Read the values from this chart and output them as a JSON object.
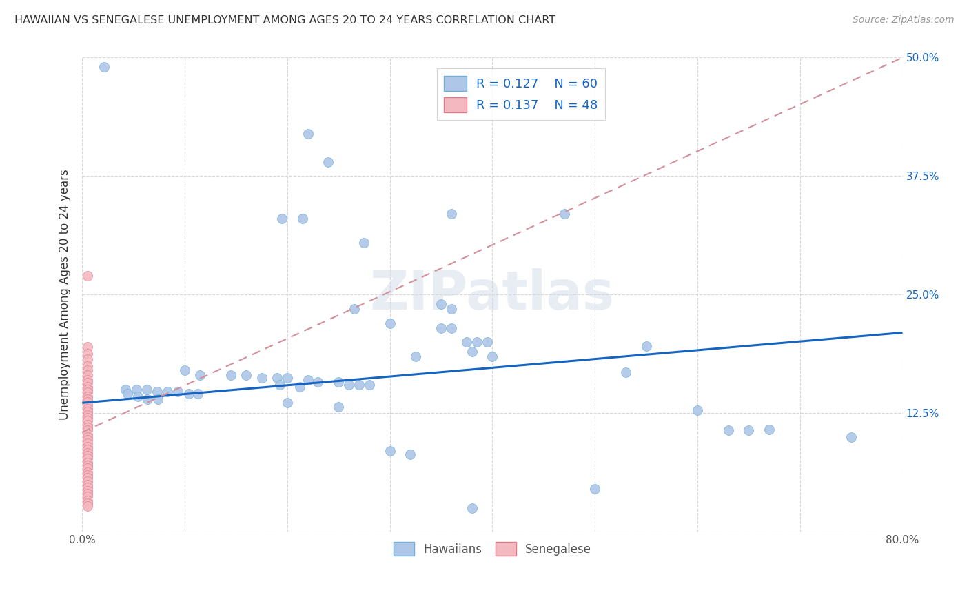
{
  "title": "HAWAIIAN VS SENEGALESE UNEMPLOYMENT AMONG AGES 20 TO 24 YEARS CORRELATION CHART",
  "source": "Source: ZipAtlas.com",
  "ylabel": "Unemployment Among Ages 20 to 24 years",
  "xlim": [
    0.0,
    0.8
  ],
  "ylim": [
    0.0,
    0.5
  ],
  "xticks": [
    0.0,
    0.1,
    0.2,
    0.3,
    0.4,
    0.5,
    0.6,
    0.7,
    0.8
  ],
  "yticks": [
    0.0,
    0.125,
    0.25,
    0.375,
    0.5
  ],
  "background_color": "#ffffff",
  "grid_color": "#d8d8d8",
  "watermark": "ZIPatlas",
  "hawaiian_color": "#aec6e8",
  "hawaiian_edge_color": "#6baed6",
  "senegalese_color": "#f4b8c0",
  "senegalese_edge_color": "#e07888",
  "trendline_hawaiian_color": "#1565c0",
  "trendline_senegalese_color": "#d4909a",
  "tick_label_color": "#1565c0",
  "title_color": "#333333",
  "ylabel_color": "#333333",
  "source_color": "#999999",
  "hawaiian_scatter": [
    [
      0.021,
      0.49
    ],
    [
      0.22,
      0.42
    ],
    [
      0.24,
      0.39
    ],
    [
      0.195,
      0.33
    ],
    [
      0.215,
      0.33
    ],
    [
      0.275,
      0.305
    ],
    [
      0.36,
      0.335
    ],
    [
      0.35,
      0.24
    ],
    [
      0.265,
      0.235
    ],
    [
      0.36,
      0.235
    ],
    [
      0.47,
      0.335
    ],
    [
      0.3,
      0.22
    ],
    [
      0.35,
      0.215
    ],
    [
      0.36,
      0.215
    ],
    [
      0.375,
      0.2
    ],
    [
      0.385,
      0.2
    ],
    [
      0.395,
      0.2
    ],
    [
      0.325,
      0.185
    ],
    [
      0.38,
      0.19
    ],
    [
      0.4,
      0.185
    ],
    [
      0.55,
      0.196
    ],
    [
      0.53,
      0.168
    ],
    [
      0.1,
      0.17
    ],
    [
      0.115,
      0.165
    ],
    [
      0.145,
      0.165
    ],
    [
      0.16,
      0.165
    ],
    [
      0.175,
      0.162
    ],
    [
      0.19,
      0.162
    ],
    [
      0.2,
      0.162
    ],
    [
      0.22,
      0.16
    ],
    [
      0.23,
      0.158
    ],
    [
      0.25,
      0.158
    ],
    [
      0.26,
      0.155
    ],
    [
      0.27,
      0.155
    ],
    [
      0.28,
      0.155
    ],
    [
      0.193,
      0.155
    ],
    [
      0.212,
      0.153
    ],
    [
      0.042,
      0.15
    ],
    [
      0.053,
      0.15
    ],
    [
      0.063,
      0.15
    ],
    [
      0.073,
      0.148
    ],
    [
      0.083,
      0.148
    ],
    [
      0.093,
      0.148
    ],
    [
      0.104,
      0.146
    ],
    [
      0.113,
      0.146
    ],
    [
      0.044,
      0.146
    ],
    [
      0.054,
      0.143
    ],
    [
      0.064,
      0.14
    ],
    [
      0.074,
      0.14
    ],
    [
      0.2,
      0.136
    ],
    [
      0.25,
      0.132
    ],
    [
      0.6,
      0.128
    ],
    [
      0.63,
      0.107
    ],
    [
      0.65,
      0.107
    ],
    [
      0.67,
      0.108
    ],
    [
      0.75,
      0.1
    ],
    [
      0.3,
      0.085
    ],
    [
      0.32,
      0.082
    ],
    [
      0.5,
      0.045
    ],
    [
      0.38,
      0.025
    ]
  ],
  "senegalese_scatter": [
    [
      0.005,
      0.27
    ],
    [
      0.005,
      0.195
    ],
    [
      0.005,
      0.188
    ],
    [
      0.005,
      0.182
    ],
    [
      0.005,
      0.175
    ],
    [
      0.005,
      0.17
    ],
    [
      0.005,
      0.165
    ],
    [
      0.005,
      0.16
    ],
    [
      0.005,
      0.157
    ],
    [
      0.005,
      0.153
    ],
    [
      0.005,
      0.15
    ],
    [
      0.005,
      0.147
    ],
    [
      0.005,
      0.143
    ],
    [
      0.005,
      0.14
    ],
    [
      0.005,
      0.137
    ],
    [
      0.005,
      0.133
    ],
    [
      0.005,
      0.13
    ],
    [
      0.005,
      0.127
    ],
    [
      0.005,
      0.123
    ],
    [
      0.005,
      0.12
    ],
    [
      0.005,
      0.117
    ],
    [
      0.005,
      0.113
    ],
    [
      0.005,
      0.11
    ],
    [
      0.005,
      0.107
    ],
    [
      0.005,
      0.103
    ],
    [
      0.005,
      0.1
    ],
    [
      0.005,
      0.097
    ],
    [
      0.005,
      0.093
    ],
    [
      0.005,
      0.09
    ],
    [
      0.005,
      0.087
    ],
    [
      0.005,
      0.083
    ],
    [
      0.005,
      0.08
    ],
    [
      0.005,
      0.077
    ],
    [
      0.005,
      0.073
    ],
    [
      0.005,
      0.07
    ],
    [
      0.005,
      0.067
    ],
    [
      0.005,
      0.063
    ],
    [
      0.005,
      0.06
    ],
    [
      0.005,
      0.057
    ],
    [
      0.005,
      0.053
    ],
    [
      0.005,
      0.05
    ],
    [
      0.005,
      0.047
    ],
    [
      0.005,
      0.043
    ],
    [
      0.005,
      0.04
    ],
    [
      0.005,
      0.037
    ],
    [
      0.005,
      0.033
    ],
    [
      0.005,
      0.03
    ],
    [
      0.005,
      0.027
    ]
  ],
  "hawaiian_trendline": [
    0.0,
    0.8,
    0.136,
    0.21
  ],
  "senegalese_trendline": [
    0.0,
    0.8,
    0.105,
    0.5
  ]
}
